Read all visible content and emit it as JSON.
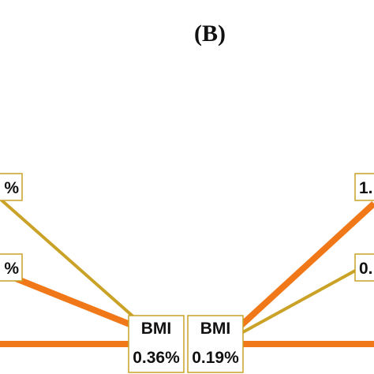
{
  "header": {
    "title": "(B)"
  },
  "nodes": [
    {
      "label": "BMI",
      "value": "0.36%"
    },
    {
      "label": "BMI",
      "value": "0.19%"
    }
  ],
  "edge_labels": [
    "%",
    "%",
    "1.",
    "0."
  ]
}
